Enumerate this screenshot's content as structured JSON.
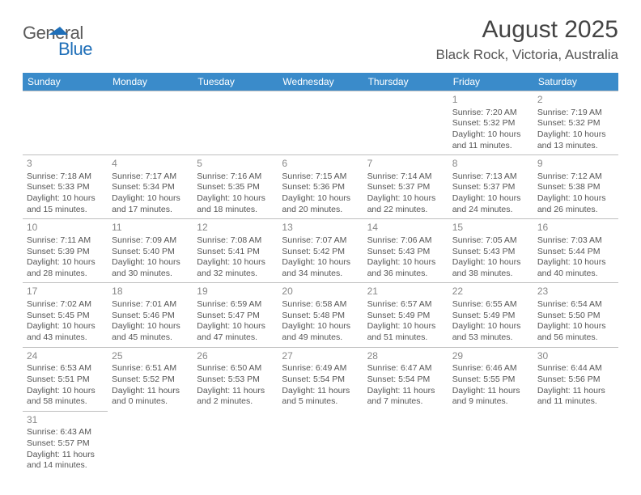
{
  "logo": {
    "part1": "General",
    "part2": "Blue"
  },
  "title": "August 2025",
  "location": "Black Rock, Victoria, Australia",
  "headers": [
    "Sunday",
    "Monday",
    "Tuesday",
    "Wednesday",
    "Thursday",
    "Friday",
    "Saturday"
  ],
  "colors": {
    "header_bg": "#3a8bca",
    "border": "#bfbfbf",
    "logo_blue": "#1f6fb8"
  },
  "weeks": [
    [
      null,
      null,
      null,
      null,
      null,
      {
        "d": "1",
        "sr": "7:20 AM",
        "ss": "5:32 PM",
        "dl": "10 hours and 11 minutes."
      },
      {
        "d": "2",
        "sr": "7:19 AM",
        "ss": "5:32 PM",
        "dl": "10 hours and 13 minutes."
      }
    ],
    [
      {
        "d": "3",
        "sr": "7:18 AM",
        "ss": "5:33 PM",
        "dl": "10 hours and 15 minutes."
      },
      {
        "d": "4",
        "sr": "7:17 AM",
        "ss": "5:34 PM",
        "dl": "10 hours and 17 minutes."
      },
      {
        "d": "5",
        "sr": "7:16 AM",
        "ss": "5:35 PM",
        "dl": "10 hours and 18 minutes."
      },
      {
        "d": "6",
        "sr": "7:15 AM",
        "ss": "5:36 PM",
        "dl": "10 hours and 20 minutes."
      },
      {
        "d": "7",
        "sr": "7:14 AM",
        "ss": "5:37 PM",
        "dl": "10 hours and 22 minutes."
      },
      {
        "d": "8",
        "sr": "7:13 AM",
        "ss": "5:37 PM",
        "dl": "10 hours and 24 minutes."
      },
      {
        "d": "9",
        "sr": "7:12 AM",
        "ss": "5:38 PM",
        "dl": "10 hours and 26 minutes."
      }
    ],
    [
      {
        "d": "10",
        "sr": "7:11 AM",
        "ss": "5:39 PM",
        "dl": "10 hours and 28 minutes."
      },
      {
        "d": "11",
        "sr": "7:09 AM",
        "ss": "5:40 PM",
        "dl": "10 hours and 30 minutes."
      },
      {
        "d": "12",
        "sr": "7:08 AM",
        "ss": "5:41 PM",
        "dl": "10 hours and 32 minutes."
      },
      {
        "d": "13",
        "sr": "7:07 AM",
        "ss": "5:42 PM",
        "dl": "10 hours and 34 minutes."
      },
      {
        "d": "14",
        "sr": "7:06 AM",
        "ss": "5:43 PM",
        "dl": "10 hours and 36 minutes."
      },
      {
        "d": "15",
        "sr": "7:05 AM",
        "ss": "5:43 PM",
        "dl": "10 hours and 38 minutes."
      },
      {
        "d": "16",
        "sr": "7:03 AM",
        "ss": "5:44 PM",
        "dl": "10 hours and 40 minutes."
      }
    ],
    [
      {
        "d": "17",
        "sr": "7:02 AM",
        "ss": "5:45 PM",
        "dl": "10 hours and 43 minutes."
      },
      {
        "d": "18",
        "sr": "7:01 AM",
        "ss": "5:46 PM",
        "dl": "10 hours and 45 minutes."
      },
      {
        "d": "19",
        "sr": "6:59 AM",
        "ss": "5:47 PM",
        "dl": "10 hours and 47 minutes."
      },
      {
        "d": "20",
        "sr": "6:58 AM",
        "ss": "5:48 PM",
        "dl": "10 hours and 49 minutes."
      },
      {
        "d": "21",
        "sr": "6:57 AM",
        "ss": "5:49 PM",
        "dl": "10 hours and 51 minutes."
      },
      {
        "d": "22",
        "sr": "6:55 AM",
        "ss": "5:49 PM",
        "dl": "10 hours and 53 minutes."
      },
      {
        "d": "23",
        "sr": "6:54 AM",
        "ss": "5:50 PM",
        "dl": "10 hours and 56 minutes."
      }
    ],
    [
      {
        "d": "24",
        "sr": "6:53 AM",
        "ss": "5:51 PM",
        "dl": "10 hours and 58 minutes."
      },
      {
        "d": "25",
        "sr": "6:51 AM",
        "ss": "5:52 PM",
        "dl": "11 hours and 0 minutes."
      },
      {
        "d": "26",
        "sr": "6:50 AM",
        "ss": "5:53 PM",
        "dl": "11 hours and 2 minutes."
      },
      {
        "d": "27",
        "sr": "6:49 AM",
        "ss": "5:54 PM",
        "dl": "11 hours and 5 minutes."
      },
      {
        "d": "28",
        "sr": "6:47 AM",
        "ss": "5:54 PM",
        "dl": "11 hours and 7 minutes."
      },
      {
        "d": "29",
        "sr": "6:46 AM",
        "ss": "5:55 PM",
        "dl": "11 hours and 9 minutes."
      },
      {
        "d": "30",
        "sr": "6:44 AM",
        "ss": "5:56 PM",
        "dl": "11 hours and 11 minutes."
      }
    ],
    [
      {
        "d": "31",
        "sr": "6:43 AM",
        "ss": "5:57 PM",
        "dl": "11 hours and 14 minutes."
      },
      null,
      null,
      null,
      null,
      null,
      null
    ]
  ],
  "labels": {
    "sunrise": "Sunrise: ",
    "sunset": "Sunset: ",
    "daylight": "Daylight: "
  }
}
